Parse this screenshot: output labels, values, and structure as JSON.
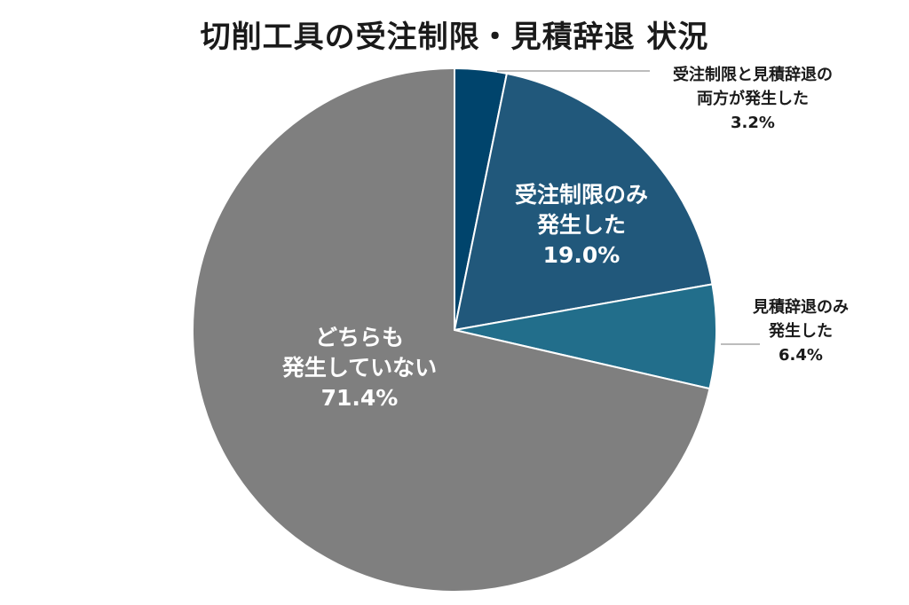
{
  "chart_data": {
    "type": "pie",
    "title": "切削工具の受注制限・見積辞退 状況",
    "start": "top",
    "direction": "clockwise",
    "slices": [
      {
        "label_lines": [
          "受注制限と見積辞退の",
          "両方が発生した"
        ],
        "value": 3.2,
        "value_label": "3.2%",
        "color": "#00446c",
        "label_position": "outside"
      },
      {
        "label_lines": [
          "受注制限のみ",
          "発生した"
        ],
        "value": 19.0,
        "value_label": "19.0%",
        "color": "#21587b",
        "label_position": "inside"
      },
      {
        "label_lines": [
          "見積辞退のみ",
          "発生した"
        ],
        "value": 6.4,
        "value_label": "6.4%",
        "color": "#226e8b",
        "label_position": "outside"
      },
      {
        "label_lines": [
          "どちらも",
          "発生していない"
        ],
        "value": 71.4,
        "value_label": "71.4%",
        "color": "#7f7f7f",
        "label_position": "inside"
      }
    ]
  }
}
